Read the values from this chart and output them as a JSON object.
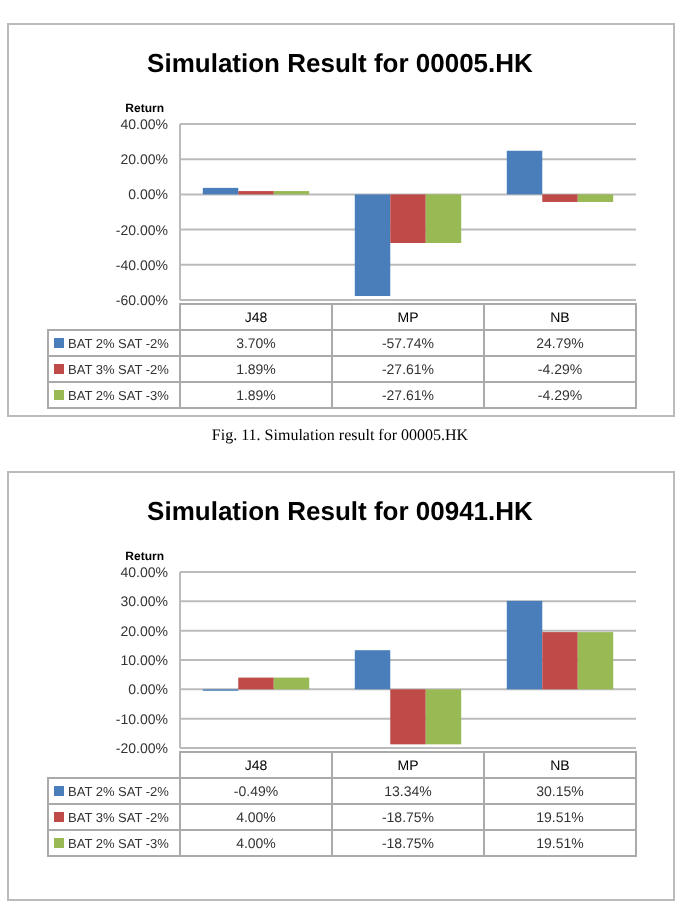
{
  "chart_data": [
    {
      "type": "bar",
      "title": "Simulation Result for 00005.HK",
      "ylabel": "Return",
      "categories": [
        "J48",
        "MP",
        "NB"
      ],
      "series": [
        {
          "name": "BAT 2% SAT -2%",
          "color": "#4a7ebb",
          "values": [
            3.7,
            -57.74,
            24.79
          ],
          "value_labels": [
            "3.70%",
            "-57.74%",
            "24.79%"
          ]
        },
        {
          "name": "BAT 3% SAT -2%",
          "color": "#be4b48",
          "values": [
            1.89,
            -27.61,
            -4.29
          ],
          "value_labels": [
            "1.89%",
            "-27.61%",
            "-4.29%"
          ]
        },
        {
          "name": "BAT 2% SAT -3%",
          "color": "#98b954",
          "values": [
            1.89,
            -27.61,
            -4.29
          ],
          "value_labels": [
            "1.89%",
            "-27.61%",
            "-4.29%"
          ]
        }
      ],
      "ylim": [
        -60,
        40
      ],
      "yticks": [
        {
          "value": -60,
          "label": "-60.00%"
        },
        {
          "value": -40,
          "label": "-40.00%"
        },
        {
          "value": -20,
          "label": "-20.00%"
        },
        {
          "value": 0,
          "label": "0.00%"
        },
        {
          "value": 20,
          "label": "20.00%"
        },
        {
          "value": 40,
          "label": "40.00%"
        }
      ],
      "grid": "y",
      "legend": "bottom",
      "annotations": [
        "Fig. 11. Simulation result for 00005.HK"
      ]
    },
    {
      "type": "bar",
      "title": "Simulation Result for 00941.HK",
      "ylabel": "Return",
      "categories": [
        "J48",
        "MP",
        "NB"
      ],
      "series": [
        {
          "name": "BAT 2% SAT -2%",
          "color": "#4a7ebb",
          "values": [
            -0.49,
            13.34,
            30.15
          ],
          "value_labels": [
            "-0.49%",
            "13.34%",
            "30.15%"
          ]
        },
        {
          "name": "BAT 3% SAT -2%",
          "color": "#be4b48",
          "values": [
            4.0,
            -18.75,
            19.51
          ],
          "value_labels": [
            "4.00%",
            "-18.75%",
            "19.51%"
          ]
        },
        {
          "name": "BAT 2% SAT -3%",
          "color": "#98b954",
          "values": [
            4.0,
            -18.75,
            19.51
          ],
          "value_labels": [
            "4.00%",
            "-18.75%",
            "19.51%"
          ]
        }
      ],
      "ylim": [
        -20,
        40
      ],
      "yticks": [
        {
          "value": -20,
          "label": "-20.00%"
        },
        {
          "value": -10,
          "label": "-10.00%"
        },
        {
          "value": 0,
          "label": "0.00%"
        },
        {
          "value": 10,
          "label": "10.00%"
        },
        {
          "value": 20,
          "label": "20.00%"
        },
        {
          "value": 30,
          "label": "30.00%"
        },
        {
          "value": 40,
          "label": "40.00%"
        }
      ],
      "grid": "y",
      "legend": "bottom"
    }
  ]
}
